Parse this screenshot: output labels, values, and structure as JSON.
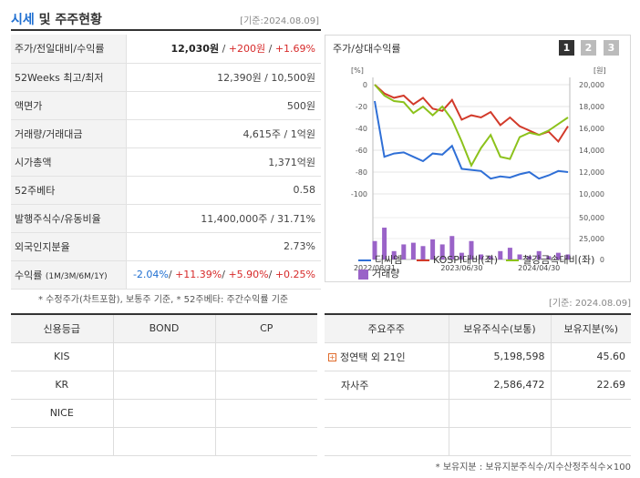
{
  "header": {
    "title_blue": "시세",
    "title_rest": " 및 주주현황",
    "date": "[기준:2024.08.09]"
  },
  "quote": {
    "rows": [
      {
        "label": "주가/전일대비/수익률",
        "price": "12,030원",
        "change": "+200원",
        "rate": "+1.69%"
      },
      {
        "label": "52Weeks 최고/최저",
        "value": "12,390원 / 10,500원"
      },
      {
        "label": "액면가",
        "value": "500원"
      },
      {
        "label": "거래량/거래대금",
        "value": "4,615주 / 1억원"
      },
      {
        "label": "시가총액",
        "value": "1,371억원"
      },
      {
        "label": "52주베타",
        "value": "0.58"
      },
      {
        "label": "발행주식수/유동비율",
        "value": "11,400,000주 / 31.71%"
      },
      {
        "label": "외국인지분율",
        "value": "2.73%"
      },
      {
        "label": "수익률",
        "sub": "(1M/3M/6M/1Y)",
        "r1": "-2.04%",
        "r2": "+11.39%",
        "r3": "+5.90%",
        "r4": "+0.25%"
      }
    ],
    "note": "* 수정주가(차트포함), 보통주 기준, * 52주베타: 주간수익률 기준"
  },
  "chart_panel": {
    "title": "주가/상대수익률",
    "pages": [
      "1",
      "2",
      "3"
    ],
    "left_unit": "[%]",
    "right_unit": "[원]",
    "legend": {
      "s1": "디씨엠",
      "s2": "KOSPI대비(좌)",
      "s3": "철강금속대비(좌)",
      "s4": "거래량"
    }
  },
  "chart_data": {
    "type": "line",
    "x_ticks": [
      "2022/08/31",
      "2023/06/30",
      "2024/04/30"
    ],
    "left_axis": {
      "unit": "[%]",
      "range": [
        -100,
        0
      ],
      "ticks": [
        0,
        -20,
        -40,
        -60,
        -80,
        -100
      ]
    },
    "right_axis": {
      "unit": "[원]",
      "range": [
        10000,
        20000
      ],
      "ticks": [
        20000,
        18000,
        16000,
        14000,
        12000,
        10000
      ]
    },
    "volume_axis": {
      "ticks": [
        50000,
        25000,
        0
      ]
    },
    "series": [
      {
        "name": "디씨엠",
        "axis": "right",
        "color": "#2f6fd6",
        "values": [
          18500,
          13400,
          13700,
          13800,
          13400,
          13000,
          13700,
          13600,
          14400,
          12300,
          12200,
          12100,
          11400,
          11600,
          11500,
          11800,
          12000,
          11400,
          11700,
          12100,
          12000
        ]
      },
      {
        "name": "KOSPI대비(좌)",
        "axis": "left",
        "color": "#d23a2a",
        "values": [
          0,
          -8,
          -12,
          -10,
          -18,
          -12,
          -22,
          -24,
          -14,
          -32,
          -28,
          -30,
          -25,
          -37,
          -30,
          -38,
          -42,
          -46,
          -43,
          -52,
          -38
        ]
      },
      {
        "name": "철강금속대비(좌)",
        "axis": "left",
        "color": "#8cc21c",
        "values": [
          0,
          -10,
          -15,
          -16,
          -26,
          -20,
          -28,
          -20,
          -32,
          -52,
          -74,
          -58,
          -46,
          -66,
          -68,
          -48,
          -44,
          -46,
          -42,
          -36,
          -30
        ]
      },
      {
        "name": "거래량",
        "axis": "volume",
        "color": "#9a63c8",
        "values": [
          22000,
          38000,
          10000,
          18000,
          20000,
          16000,
          24000,
          18000,
          28000,
          8000,
          22000,
          6000,
          4000,
          10000,
          14000,
          6000,
          4000,
          10000,
          4000,
          8000,
          6000
        ]
      }
    ]
  },
  "credit": {
    "headers": [
      "신용등급",
      "BOND",
      "CP"
    ],
    "rows": [
      {
        "agency": "KIS",
        "bond": "",
        "cp": ""
      },
      {
        "agency": "KR",
        "bond": "",
        "cp": ""
      },
      {
        "agency": "NICE",
        "bond": "",
        "cp": ""
      },
      {
        "agency": "",
        "bond": "",
        "cp": ""
      }
    ]
  },
  "holders": {
    "date": "[기준: 2024.08.09]",
    "headers": [
      "주요주주",
      "보유주식수(보통)",
      "보유지분(%)"
    ],
    "rows": [
      {
        "name": "정연택 외 21인",
        "shares": "5,198,598",
        "pct": "45.60",
        "expandable": true
      },
      {
        "name": "자사주",
        "shares": "2,586,472",
        "pct": "22.69",
        "expandable": false
      },
      {
        "name": "",
        "shares": "",
        "pct": "",
        "expandable": false
      },
      {
        "name": "",
        "shares": "",
        "pct": "",
        "expandable": false
      }
    ],
    "note": "* 보유지분 : 보유지분주식수/지수산정주식수×100"
  }
}
